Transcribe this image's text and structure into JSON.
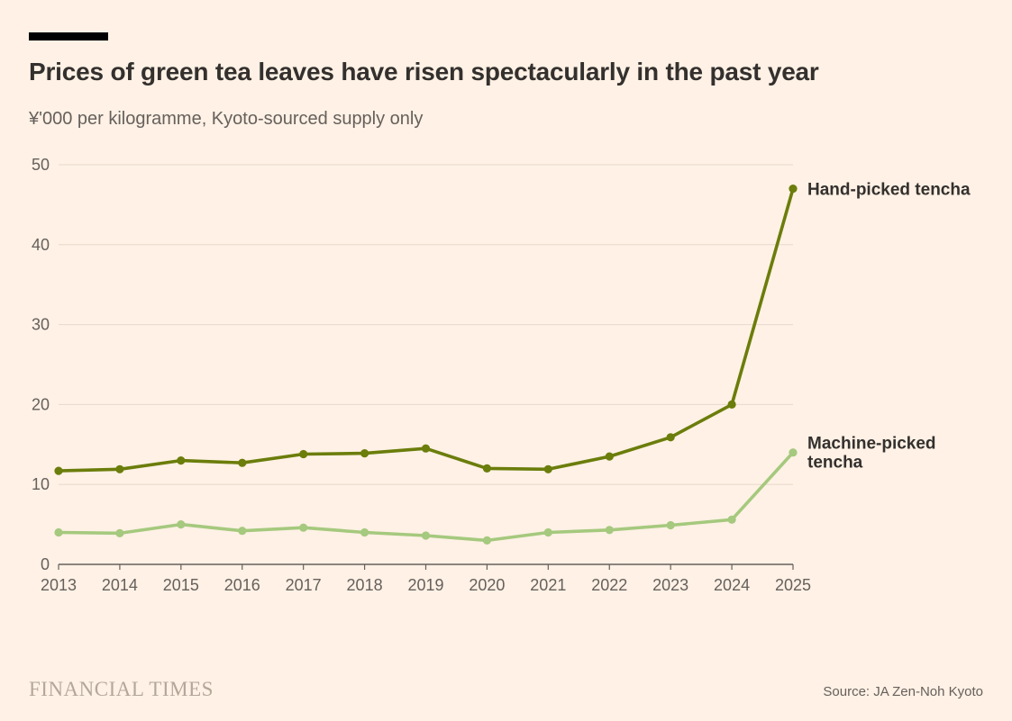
{
  "chart_data": {
    "type": "line",
    "title": "Prices of green tea leaves have risen spectacularly in the past year",
    "subtitle": "¥'000 per kilogramme, Kyoto-sourced supply only",
    "categories": [
      "2013",
      "2014",
      "2015",
      "2016",
      "2017",
      "2018",
      "2019",
      "2020",
      "2021",
      "2022",
      "2023",
      "2024",
      "2025"
    ],
    "series": [
      {
        "name": "Hand-picked tencha",
        "color": "#6B7D0B",
        "values": [
          11.7,
          11.9,
          13.0,
          12.7,
          13.8,
          13.9,
          14.5,
          12.0,
          11.9,
          13.5,
          15.9,
          20.0,
          47.0
        ],
        "label_lines": [
          "Hand-picked tencha"
        ]
      },
      {
        "name": "Machine-picked tencha",
        "color": "#A5C97E",
        "values": [
          4.0,
          3.9,
          5.0,
          4.2,
          4.6,
          4.0,
          3.6,
          3.0,
          4.0,
          4.3,
          4.9,
          5.6,
          14.0
        ],
        "label_lines": [
          "Machine-picked",
          "tencha"
        ]
      }
    ],
    "ylim": [
      0,
      50
    ],
    "yticks": [
      0,
      10,
      20,
      30,
      40,
      50
    ],
    "grid": "horizontal",
    "legend_position": "end-of-line"
  },
  "footer": {
    "brand": "FINANCIAL TIMES",
    "source": "Source: JA Zen-Noh Kyoto"
  },
  "colors": {
    "background": "#FFF1E5",
    "title": "#33302E",
    "subtitle": "#66605C",
    "grid": "#E5DACC",
    "axis": "#66605C",
    "tick_label": "#66605C",
    "series_label": "#33302E",
    "accent_bar": "#000000"
  }
}
